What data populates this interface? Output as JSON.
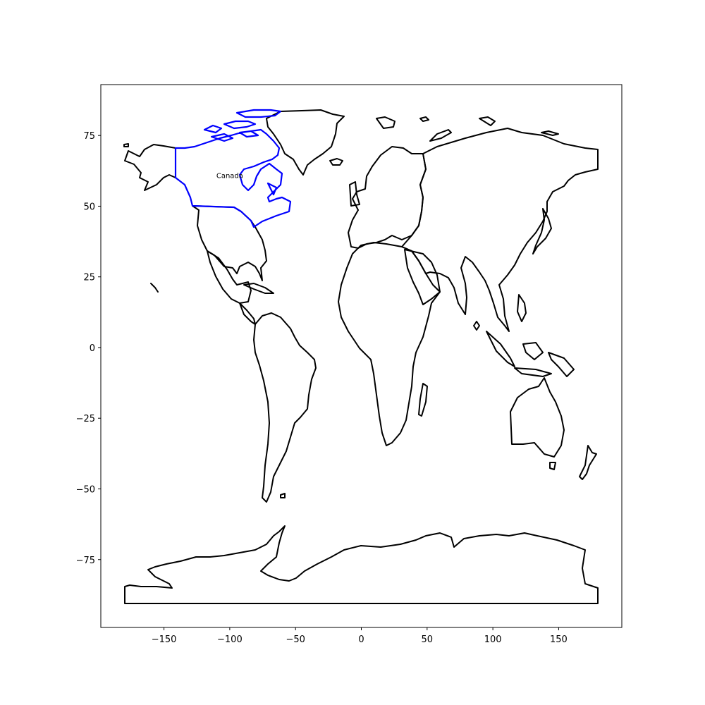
{
  "chart_data": {
    "type": "map",
    "title": "",
    "xlabel": "",
    "ylabel": "",
    "xlim": [
      -198,
      198
    ],
    "ylim": [
      -99,
      93
    ],
    "x_ticks": [
      -150,
      -100,
      -50,
      0,
      50,
      100,
      150
    ],
    "x_tick_labels": [
      "−150",
      "−100",
      "−50",
      "0",
      "50",
      "100",
      "150"
    ],
    "y_ticks": [
      75,
      50,
      25,
      0,
      -25,
      -50,
      -75
    ],
    "y_tick_labels": [
      "75",
      "50",
      "25",
      "0",
      "−25",
      "−50",
      "−75"
    ],
    "grid": false,
    "highlighted_country": {
      "name": "Canada",
      "color": "#0000ff",
      "label_lon": -100,
      "label_lat": 61
    },
    "outline_color": "#000000"
  }
}
